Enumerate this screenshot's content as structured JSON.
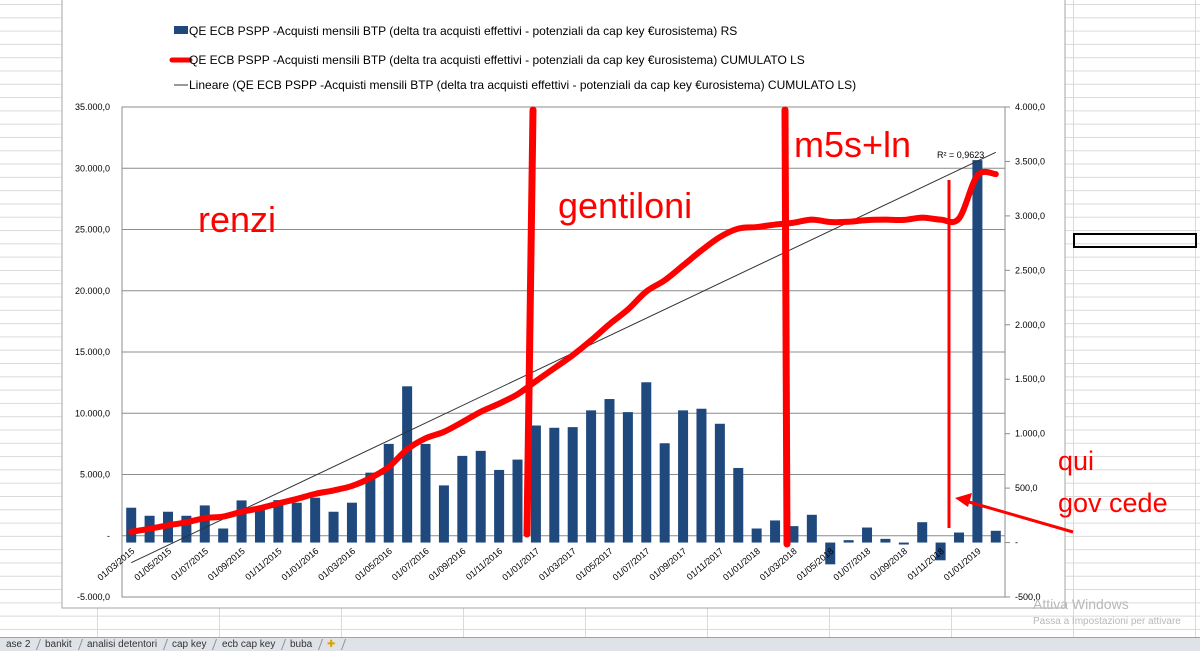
{
  "chart_data": {
    "type": "bar+line",
    "legend": [
      {
        "label": "QE ECB PSPP -Acquisti mensili BTP (delta tra acquisti effettivi - potenziali da cap key €urosistema)  RS",
        "color": "#1f497d",
        "kind": "bar"
      },
      {
        "label": "QE ECB PSPP -Acquisti mensili BTP (delta tra acquisti effettivi - potenziali da cap key €urosistema) CUMULATO        LS",
        "color": "#ff0000",
        "kind": "line"
      },
      {
        "label": "Lineare (QE ECB PSPP -Acquisti mensili BTP (delta tra acquisti effettivi - potenziali da cap key €urosistema) CUMULATO        LS)",
        "color": "#333333",
        "kind": "trend"
      }
    ],
    "legend_placement": "top",
    "categories": [
      "01/03/2015",
      "01/04/2015",
      "01/05/2015",
      "01/06/2015",
      "01/07/2015",
      "01/08/2015",
      "01/09/2015",
      "01/10/2015",
      "01/11/2015",
      "01/12/2015",
      "01/01/2016",
      "01/02/2016",
      "01/03/2016",
      "01/04/2016",
      "01/05/2016",
      "01/06/2016",
      "01/07/2016",
      "01/08/2016",
      "01/09/2016",
      "01/10/2016",
      "01/11/2016",
      "01/12/2016",
      "01/01/2017",
      "01/02/2017",
      "01/03/2017",
      "01/04/2017",
      "01/05/2017",
      "01/06/2017",
      "01/07/2017",
      "01/08/2017",
      "01/09/2017",
      "01/10/2017",
      "01/11/2017",
      "01/12/2017",
      "01/01/2018",
      "01/02/2018",
      "01/03/2018",
      "01/04/2018",
      "01/05/2018",
      "01/06/2018",
      "01/07/2018",
      "01/08/2018",
      "01/09/2018",
      "01/10/2018",
      "01/11/2018",
      "01/12/2018",
      "01/01/2019",
      "01/02/2019"
    ],
    "series": [
      {
        "name": "monthly",
        "axis": "right",
        "values": [
          320,
          246,
          283,
          246,
          341,
          129,
          387,
          298,
          390,
          366,
          412,
          283,
          366,
          642,
          906,
          1435,
          906,
          525,
          796,
          842,
          667,
          762,
          1075,
          1054,
          1060,
          1214,
          1318,
          1198,
          1472,
          912,
          1214,
          1229,
          1091,
          685,
          129,
          203,
          151,
          255,
          -200,
          22,
          138,
          34,
          -18,
          187,
          -163,
          92,
          3512,
          108
        ]
      },
      {
        "name": "cumulative",
        "axis": "left",
        "values": [
          320,
          566,
          849,
          1095,
          1436,
          1565,
          1952,
          2250,
          2640,
          3006,
          3418,
          3701,
          4067,
          4709,
          5615,
          7050,
          7956,
          8481,
          9277,
          10119,
          10786,
          11548,
          12623,
          13677,
          14737,
          15951,
          17269,
          18467,
          19939,
          20851,
          22065,
          23294,
          24385,
          25070,
          25199,
          25402,
          25553,
          25808,
          25608,
          25630,
          25768,
          25802,
          25784,
          25971,
          25808,
          25900,
          29412,
          29520
        ]
      }
    ],
    "trendline": {
      "start": -2200,
      "end": 31300,
      "r2_label": "R² = 0,9623"
    },
    "left_axis": {
      "ylim": [
        -5000,
        35000
      ],
      "ticks": [
        35000,
        30000,
        25000,
        20000,
        15000,
        10000,
        5000,
        0,
        -5000
      ],
      "tick_labels": [
        "35.000,0",
        "30.000,0",
        "25.000,0",
        "20.000,0",
        "15.000,0",
        "10.000,0",
        "5.000,0",
        "-",
        "-5.000,0"
      ]
    },
    "right_axis": {
      "ylim": [
        -500,
        4000
      ],
      "ticks": [
        4000,
        3500,
        3000,
        2500,
        2000,
        1500,
        1000,
        500,
        0,
        -500
      ],
      "tick_labels": [
        "4.000,0",
        "3.500,0",
        "3.000,0",
        "2.500,0",
        "2.000,0",
        "1.500,0",
        "1.000,0",
        "500,0",
        "-",
        "-500,0"
      ]
    },
    "x_tick_labels": [
      "01/03/2015",
      "01/05/2015",
      "01/07/2015",
      "01/09/2015",
      "01/11/2015",
      "01/01/2016",
      "01/03/2016",
      "01/05/2016",
      "01/07/2016",
      "01/09/2016",
      "01/11/2016",
      "01/01/2017",
      "01/03/2017",
      "01/05/2017",
      "01/07/2017",
      "01/09/2017",
      "01/11/2017",
      "01/01/2018",
      "01/03/2018",
      "01/05/2018",
      "01/07/2018",
      "01/09/2018",
      "01/11/2018",
      "01/01/2019"
    ],
    "grid": true,
    "annotations": {
      "renzi": "renzi",
      "gentiloni": "gentiloni",
      "m5s": "m5s+ln",
      "qui": "qui",
      "gov_cede": "gov cede"
    }
  },
  "sheet_tabs": [
    "ase  2",
    "bankit",
    "analisi detentori",
    "cap key",
    "ecb  cap key",
    "buba"
  ],
  "watermark": {
    "title": "Attiva Windows",
    "subtitle": "Passa a Impostazioni per attivare"
  }
}
